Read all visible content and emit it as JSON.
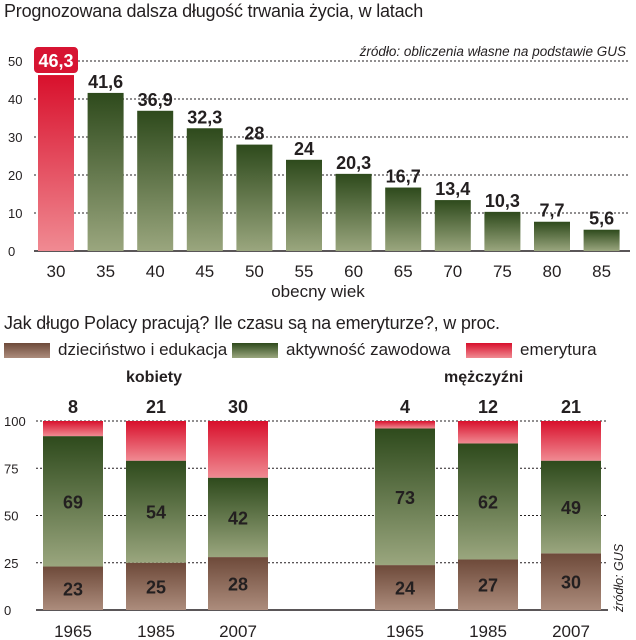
{
  "colors": {
    "green_top": "#2e4a1c",
    "green_bottom": "#9aa67e",
    "red_top": "#d8102c",
    "red_bottom": "#f08a92",
    "brown_top": "#6e4a3a",
    "brown_bottom": "#ac8c7c",
    "highlight_label_bg": "#d71432"
  },
  "chart_data": [
    {
      "type": "bar",
      "title": "Prognozowana dalsza długość trwania życia, w latach",
      "source": "źródło: obliczenia własne na podstawie GUS",
      "xlabel": "obecny wiek",
      "ylabel": "",
      "ylim": [
        0,
        50
      ],
      "yticks": [
        0,
        10,
        20,
        30,
        40,
        50
      ],
      "categories": [
        "30",
        "35",
        "40",
        "45",
        "50",
        "55",
        "60",
        "65",
        "70",
        "75",
        "80",
        "85"
      ],
      "values": [
        46.3,
        41.6,
        36.9,
        32.3,
        28,
        24,
        20.3,
        16.7,
        13.4,
        10.3,
        7.7,
        5.6
      ],
      "value_labels": [
        "46,3",
        "41,6",
        "36,9",
        "32,3",
        "28",
        "24",
        "20,3",
        "16,7",
        "13,4",
        "10,3",
        "7,7",
        "5,6"
      ],
      "highlight_index": 0
    },
    {
      "type": "bar",
      "stacked": true,
      "title": "Jak długo Polacy pracują? Ile czasu są na emeryturze?, w proc.",
      "source": "źródło: GUS",
      "ylim": [
        0,
        100
      ],
      "yticks": [
        0,
        25,
        50,
        75,
        100
      ],
      "legend": [
        "dzieciństwo i edukacja",
        "aktywność zawodowa",
        "emerytura"
      ],
      "groups": [
        {
          "name": "kobiety",
          "categories": [
            "1965",
            "1985",
            "2007"
          ],
          "series": [
            {
              "name": "dzieciństwo i edukacja",
              "values": [
                23,
                25,
                28
              ]
            },
            {
              "name": "aktywność zawodowa",
              "values": [
                69,
                54,
                42
              ]
            },
            {
              "name": "emerytura",
              "values": [
                8,
                21,
                30
              ]
            }
          ]
        },
        {
          "name": "mężczyźni",
          "categories": [
            "1965",
            "1985",
            "2007"
          ],
          "series": [
            {
              "name": "dzieciństwo i edukacja",
              "values": [
                24,
                27,
                30
              ]
            },
            {
              "name": "aktywność zawodowa",
              "values": [
                73,
                62,
                49
              ]
            },
            {
              "name": "emerytura",
              "values": [
                4,
                12,
                21
              ]
            }
          ]
        }
      ]
    }
  ]
}
